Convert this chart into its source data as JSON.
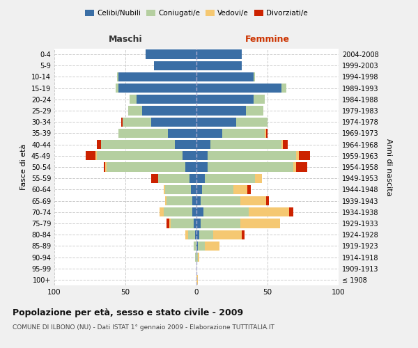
{
  "age_groups": [
    "100+",
    "95-99",
    "90-94",
    "85-89",
    "80-84",
    "75-79",
    "70-74",
    "65-69",
    "60-64",
    "55-59",
    "50-54",
    "45-49",
    "40-44",
    "35-39",
    "30-34",
    "25-29",
    "20-24",
    "15-19",
    "10-14",
    "5-9",
    "0-4"
  ],
  "birth_years": [
    "≤ 1908",
    "1909-1913",
    "1914-1918",
    "1919-1923",
    "1924-1928",
    "1929-1933",
    "1934-1938",
    "1939-1943",
    "1944-1948",
    "1949-1953",
    "1954-1958",
    "1959-1963",
    "1964-1968",
    "1969-1973",
    "1974-1978",
    "1979-1983",
    "1984-1988",
    "1989-1993",
    "1994-1998",
    "1999-2003",
    "2004-2008"
  ],
  "colors": {
    "celibi": "#3a6ea5",
    "coniugati": "#b5cfa0",
    "vedovi": "#f5c872",
    "divorziati": "#cc2200"
  },
  "maschi": {
    "celibi": [
      0,
      0,
      0,
      0,
      1,
      2,
      3,
      3,
      4,
      5,
      8,
      10,
      15,
      20,
      32,
      38,
      42,
      55,
      55,
      30,
      36
    ],
    "coniugati": [
      0,
      0,
      1,
      2,
      5,
      16,
      20,
      18,
      18,
      22,
      55,
      60,
      52,
      35,
      20,
      10,
      5,
      2,
      1,
      0,
      0
    ],
    "vedovi": [
      0,
      0,
      0,
      0,
      2,
      1,
      3,
      1,
      1,
      0,
      1,
      1,
      0,
      0,
      0,
      0,
      0,
      0,
      0,
      0,
      0
    ],
    "divorziati": [
      0,
      0,
      0,
      0,
      0,
      2,
      0,
      0,
      0,
      5,
      1,
      7,
      3,
      0,
      1,
      0,
      0,
      0,
      0,
      0,
      0
    ]
  },
  "femmine": {
    "celibi": [
      0,
      0,
      0,
      1,
      2,
      3,
      5,
      3,
      4,
      6,
      8,
      8,
      10,
      18,
      28,
      35,
      40,
      60,
      40,
      32,
      32
    ],
    "coniugati": [
      0,
      0,
      1,
      5,
      10,
      28,
      32,
      28,
      22,
      35,
      60,
      62,
      50,
      30,
      22,
      12,
      8,
      3,
      1,
      0,
      0
    ],
    "vedovi": [
      1,
      0,
      1,
      10,
      20,
      28,
      28,
      18,
      10,
      5,
      2,
      2,
      1,
      1,
      0,
      0,
      0,
      0,
      0,
      0,
      0
    ],
    "divorziati": [
      0,
      0,
      0,
      0,
      2,
      0,
      3,
      2,
      2,
      0,
      8,
      8,
      3,
      1,
      0,
      0,
      0,
      0,
      0,
      0,
      0
    ]
  },
  "title": "Popolazione per età, sesso e stato civile - 2009",
  "subtitle": "COMUNE DI ILBONO (NU) - Dati ISTAT 1° gennaio 2009 - Elaborazione TUTTITALIA.IT",
  "xlabel_left": "Maschi",
  "xlabel_right": "Femmine",
  "ylabel_left": "Fasce di età",
  "ylabel_right": "Anni di nascita",
  "xlim": 100,
  "legend_labels": [
    "Celibi/Nubili",
    "Coniugati/e",
    "Vedovi/e",
    "Divorziati/e"
  ],
  "bg_color": "#f0f0f0",
  "plot_bg": "#ffffff"
}
